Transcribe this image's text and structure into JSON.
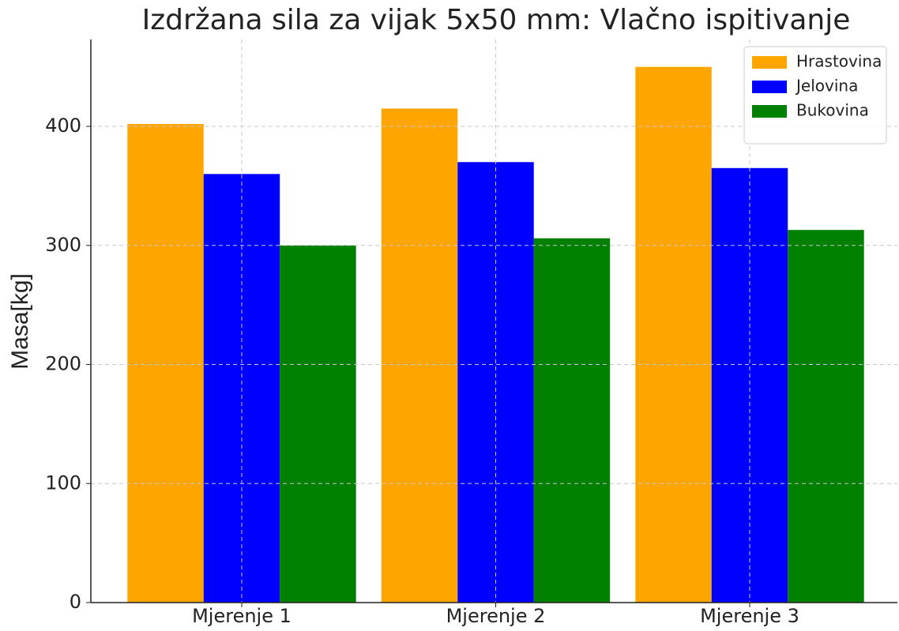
{
  "chart_data": {
    "type": "bar",
    "title": "Izdržana sila za vijak 5x50 mm: Vlačno ispitivanje",
    "y_label": "Masa[kg]",
    "categories": [
      "Mjerenje 1",
      "Mjerenje 2",
      "Mjerenje 3"
    ],
    "series": [
      {
        "name": "Hrastovina",
        "color": "#ffa500",
        "values": [
          402,
          415,
          450
        ]
      },
      {
        "name": "Jelovina",
        "color": "#0000ff",
        "values": [
          360,
          370,
          365
        ]
      },
      {
        "name": "Bukovina",
        "color": "#008000",
        "values": [
          300,
          306,
          313
        ]
      }
    ],
    "ylim": [
      0,
      473
    ],
    "yticks": [
      0,
      100,
      200,
      300,
      400
    ],
    "grid": true,
    "legend": "upper right"
  }
}
